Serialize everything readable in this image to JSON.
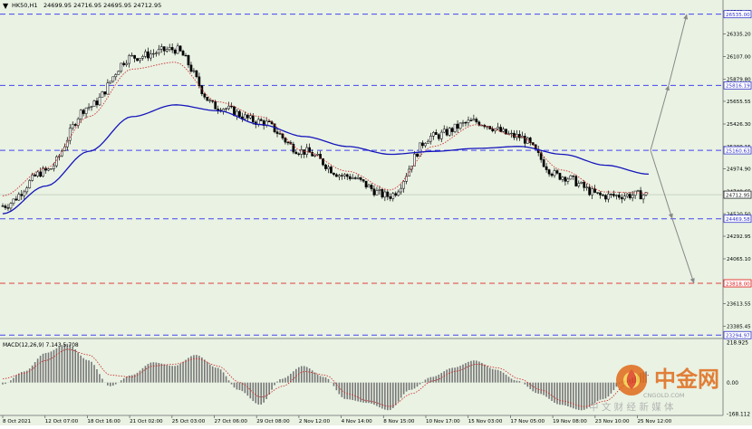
{
  "header": {
    "symbol": "HK50,H1",
    "ohlc": "24699.95 24716.95 24695.95 24712.95"
  },
  "macd_label": "MACD(12,26,9) 7.143 5.708",
  "price_axis": {
    "ticks": [
      "26563.40",
      "26335.20",
      "26107.00",
      "25879.80",
      "25655.55",
      "25426.30",
      "25200.15",
      "24974.90",
      "24748.65",
      "24520.50",
      "24292.95",
      "24065.10",
      "23838.00",
      "23613.55",
      "23385.45"
    ]
  },
  "macd_axis": {
    "ticks": [
      "218.925",
      "0.00",
      "-168.112"
    ]
  },
  "time_axis": {
    "labels": [
      "8 Oct 2021",
      "12 Oct 07:00",
      "18 Oct 16:00",
      "21 Oct 02:00",
      "25 Oct 03:00",
      "27 Oct 06:00",
      "29 Oct 08:00",
      "2 Nov 12:00",
      "4 Nov 14:00",
      "8 Nov 15:00",
      "10 Nov 17:00",
      "15 Nov 03:00",
      "17 Nov 05:00",
      "19 Nov 08:00",
      "23 Nov 10:00",
      "25 Nov 12:00"
    ]
  },
  "level_tags": [
    {
      "label": "26535.00",
      "color": "#3333cc",
      "price": 26535.0
    },
    {
      "label": "25816.19",
      "color": "#3333cc",
      "price": 25816.19
    },
    {
      "label": "25160.63",
      "color": "#3333cc",
      "price": 25160.63
    },
    {
      "label": "24712.95",
      "color": "#222222",
      "price": 24712.95
    },
    {
      "label": "24469.58",
      "color": "#3333cc",
      "price": 24469.58
    },
    {
      "label": "23818.00",
      "color": "#e01010",
      "price": 23818.0
    },
    {
      "label": "23294.97",
      "color": "#3333cc",
      "price": 23294.97
    }
  ],
  "colors": {
    "background": "#e9f2e3",
    "ma_slow": "#1515bb",
    "ma_fast": "#cc3333",
    "level": "#4444ee",
    "support_red": "#e04040",
    "candle": "#000000",
    "histogram": "#777777",
    "signal": "#cc2222"
  },
  "watermark": {
    "title": "中金网",
    "url": "CNGOLD.COM",
    "slogan": "中 文 财 经 新 媒 体"
  },
  "chart_data": {
    "type": "line",
    "title": "HK50,H1",
    "timeframe": "H1",
    "ylim": [
      23270,
      26660
    ],
    "x": [
      "8 Oct 2021",
      "12 Oct 07:00",
      "18 Oct 16:00",
      "21 Oct 02:00",
      "25 Oct 03:00",
      "27 Oct 06:00",
      "29 Oct 08:00",
      "2 Nov 12:00",
      "4 Nov 14:00",
      "8 Nov 15:00",
      "10 Nov 17:00",
      "15 Nov 03:00",
      "17 Nov 05:00",
      "19 Nov 08:00",
      "23 Nov 10:00",
      "25 Nov 12:00"
    ],
    "series": [
      {
        "values": [
          24600,
          24950,
          25600,
          26100,
          26180,
          25600,
          25450,
          25150,
          24900,
          24700,
          25300,
          25450,
          25300,
          24900,
          24700,
          24712.95
        ]
      },
      {
        "values": [
          24700,
          24980,
          25500,
          25980,
          26050,
          25650,
          25500,
          25150,
          24950,
          24760,
          25200,
          25420,
          25300,
          24960,
          24740,
          24730
        ]
      },
      {
        "values": [
          24520,
          24800,
          25150,
          25500,
          25620,
          25560,
          25420,
          25300,
          25200,
          25120,
          25150,
          25180,
          25200,
          25120,
          25010,
          24920
        ]
      }
    ],
    "horizontal_levels": [
      26535.0,
      25816.19,
      25160.63,
      24469.58,
      23818.0,
      23294.97
    ],
    "projected_paths": [
      [
        25160.63,
        25816.19,
        26535.0
      ],
      [
        25160.63,
        24469.58,
        23818.0
      ]
    ],
    "macd": {
      "label": "MACD(12,26,9) 7.143 5.708",
      "ylim": [
        -168.112,
        218.925
      ],
      "histogram": [
        -10,
        60,
        160,
        210,
        120,
        -20,
        40,
        110,
        90,
        150,
        80,
        -40,
        -120,
        20,
        90,
        30,
        -90,
        -110,
        -150,
        -40,
        30,
        80,
        120,
        70,
        10,
        -60,
        -120,
        -150,
        -90,
        10,
        60
      ],
      "signal": [
        20,
        50,
        120,
        180,
        150,
        40,
        30,
        90,
        100,
        130,
        90,
        0,
        -80,
        -20,
        60,
        40,
        -60,
        -100,
        -130,
        -60,
        10,
        60,
        100,
        80,
        20,
        -40,
        -100,
        -130,
        -100,
        -10,
        40
      ]
    }
  }
}
